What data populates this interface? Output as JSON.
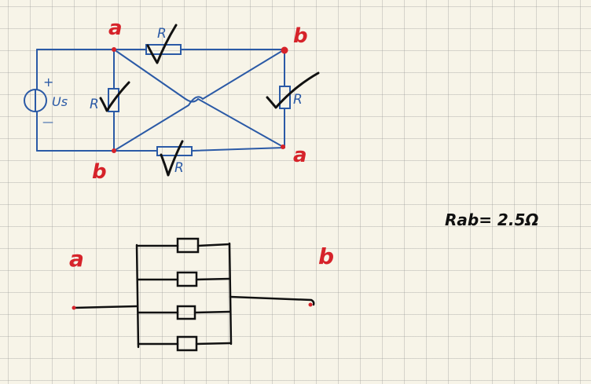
{
  "colors": {
    "background": "#f7f4e8",
    "grid": "#c8c8c8",
    "blue_ink": "#2b5aa6",
    "red_ink": "#d6232a",
    "black_ink": "#111111"
  },
  "top_circuit": {
    "node_labels": {
      "top_left": "a",
      "top_right": "b",
      "bottom_left": "b",
      "bottom_right": "a"
    },
    "source": {
      "plus": "+",
      "minus": "—",
      "label": "Us"
    },
    "resistor_labels": {
      "top": "R",
      "left": "R",
      "right": "R",
      "bottom": "R"
    }
  },
  "result": {
    "text": "Rab= 2.5Ω"
  },
  "bottom_circuit": {
    "node_labels": {
      "left": "a",
      "right": "b"
    },
    "parallel_count": 4
  }
}
